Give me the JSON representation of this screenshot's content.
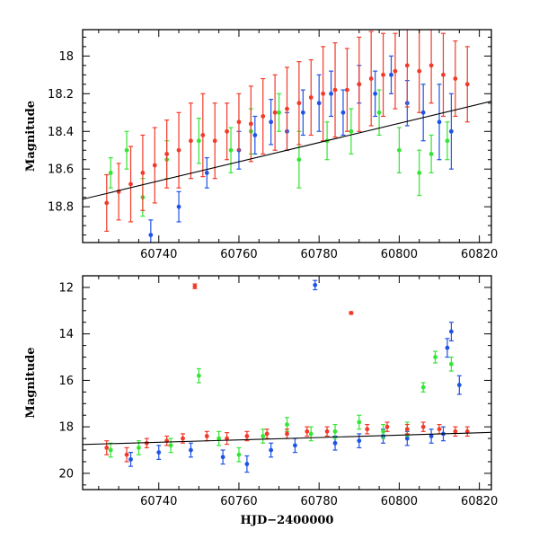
{
  "chart_data": [
    {
      "type": "scatter",
      "title": "",
      "xlabel": "",
      "ylabel": "Magnitude",
      "xlim": [
        60721,
        60823
      ],
      "ylim": [
        18.99,
        17.86
      ],
      "y_inverted": true,
      "xticks": [
        60740,
        60760,
        60780,
        60800,
        60820
      ],
      "xtick_labels": [
        "60740",
        "60760",
        "60780",
        "60800",
        "60820"
      ],
      "yticks": [
        18,
        18.2,
        18.4,
        18.6,
        18.8
      ],
      "ytick_labels": [
        "18",
        "18.2",
        "18.4",
        "18.6",
        "18.8"
      ],
      "colors": {
        "blue": "#1f53e6",
        "green": "#33e633",
        "red": "#f23a2a"
      },
      "series": [
        {
          "color_key": "blue",
          "x": [
            60738,
            60745,
            60752,
            60760,
            60764,
            60768,
            60772,
            60776,
            60780,
            60783,
            60786,
            60790,
            60794,
            60798,
            60802,
            60806,
            60810,
            60813
          ],
          "y": [
            18.95,
            18.8,
            18.62,
            18.5,
            18.42,
            18.35,
            18.4,
            18.3,
            18.25,
            18.2,
            18.3,
            18.15,
            18.2,
            18.1,
            18.25,
            18.3,
            18.35,
            18.4
          ],
          "yerr": [
            0.08,
            0.08,
            0.08,
            0.1,
            0.1,
            0.12,
            0.1,
            0.12,
            0.15,
            0.12,
            0.12,
            0.1,
            0.12,
            0.1,
            0.12,
            0.15,
            0.2,
            0.2
          ]
        },
        {
          "color_key": "green",
          "x": [
            60728,
            60732,
            60736,
            60742,
            60750,
            60758,
            60763,
            60770,
            60775,
            60782,
            60788,
            60795,
            60800,
            60805,
            60808,
            60812
          ],
          "y": [
            18.62,
            18.5,
            18.75,
            18.55,
            18.45,
            18.5,
            18.4,
            18.3,
            18.55,
            18.45,
            18.4,
            18.3,
            18.5,
            18.62,
            18.52,
            18.45
          ],
          "yerr": [
            0.08,
            0.1,
            0.1,
            0.1,
            0.12,
            0.12,
            0.12,
            0.1,
            0.15,
            0.1,
            0.12,
            0.12,
            0.12,
            0.12,
            0.1,
            0.1
          ]
        },
        {
          "color_key": "red",
          "x": [
            60727,
            60730,
            60733,
            60736,
            60739,
            60742,
            60745,
            60748,
            60751,
            60754,
            60757,
            60760,
            60763,
            60766,
            60769,
            60772,
            60775,
            60778,
            60781,
            60784,
            60787,
            60790,
            60793,
            60796,
            60799,
            60802,
            60805,
            60808,
            60811,
            60814,
            60817
          ],
          "y": [
            18.78,
            18.72,
            18.68,
            18.62,
            18.58,
            18.52,
            18.5,
            18.45,
            18.42,
            18.45,
            18.4,
            18.35,
            18.36,
            18.32,
            18.3,
            18.28,
            18.25,
            18.22,
            18.2,
            18.18,
            18.18,
            18.15,
            18.12,
            18.1,
            18.08,
            18.05,
            18.08,
            18.05,
            18.1,
            18.12,
            18.15
          ],
          "yerr": [
            0.15,
            0.15,
            0.2,
            0.2,
            0.2,
            0.18,
            0.2,
            0.2,
            0.22,
            0.2,
            0.15,
            0.15,
            0.2,
            0.2,
            0.2,
            0.22,
            0.22,
            0.2,
            0.25,
            0.25,
            0.22,
            0.25,
            0.25,
            0.22,
            0.2,
            0.22,
            0.22,
            0.2,
            0.22,
            0.2,
            0.2
          ]
        }
      ],
      "trend_line": {
        "x": [
          60721,
          60823
        ],
        "y": [
          18.76,
          18.24
        ]
      }
    },
    {
      "type": "scatter",
      "title": "",
      "xlabel": "HJD−2400000",
      "ylabel": "Magnitude",
      "xlim": [
        60721,
        60823
      ],
      "ylim": [
        20.7,
        11.5
      ],
      "y_inverted": true,
      "xticks": [
        60740,
        60760,
        60780,
        60800,
        60820
      ],
      "xtick_labels": [
        "60740",
        "60760",
        "60780",
        "60800",
        "60820"
      ],
      "yticks": [
        12,
        14,
        16,
        18,
        20
      ],
      "ytick_labels": [
        "12",
        "14",
        "16",
        "18",
        "20"
      ],
      "colors": {
        "blue": "#1f53e6",
        "green": "#33e633",
        "red": "#f23a2a"
      },
      "series": [
        {
          "color_key": "blue",
          "x": [
            60733,
            60740,
            60748,
            60756,
            60762,
            60768,
            60774,
            60779,
            60784,
            60790,
            60796,
            60802,
            60808,
            60811,
            60812,
            60813,
            60815
          ],
          "y": [
            19.4,
            19.1,
            19.0,
            19.3,
            19.6,
            19.0,
            18.8,
            11.9,
            18.7,
            18.6,
            18.4,
            18.5,
            18.4,
            18.3,
            14.6,
            13.9,
            16.2
          ],
          "yerr": [
            0.3,
            0.3,
            0.3,
            0.3,
            0.35,
            0.3,
            0.3,
            0.2,
            0.3,
            0.3,
            0.3,
            0.3,
            0.3,
            0.3,
            0.4,
            0.4,
            0.4
          ]
        },
        {
          "color_key": "green",
          "x": [
            60728,
            60735,
            60743,
            60750,
            60755,
            60760,
            60766,
            60772,
            60778,
            60784,
            60790,
            60796,
            60802,
            60806,
            60809,
            60813
          ],
          "y": [
            19.0,
            18.9,
            18.8,
            15.8,
            18.5,
            19.2,
            18.4,
            17.9,
            18.3,
            18.2,
            17.8,
            18.2,
            18.1,
            16.3,
            15.0,
            15.3
          ],
          "yerr": [
            0.3,
            0.3,
            0.3,
            0.3,
            0.3,
            0.3,
            0.3,
            0.3,
            0.3,
            0.3,
            0.3,
            0.3,
            0.3,
            0.2,
            0.25,
            0.3
          ]
        },
        {
          "color_key": "red",
          "x": [
            60727,
            60732,
            60737,
            60742,
            60746,
            60749,
            60752,
            60757,
            60762,
            60767,
            60772,
            60777,
            60782,
            60788,
            60792,
            60797,
            60802,
            60806,
            60810,
            60814,
            60817
          ],
          "y": [
            18.9,
            19.2,
            18.7,
            18.6,
            18.5,
            11.95,
            18.4,
            18.5,
            18.4,
            18.3,
            18.3,
            18.2,
            18.2,
            13.1,
            18.1,
            18.0,
            18.1,
            18.0,
            18.1,
            18.2,
            18.2
          ],
          "yerr": [
            0.3,
            0.3,
            0.2,
            0.2,
            0.2,
            0.1,
            0.2,
            0.25,
            0.2,
            0.2,
            0.2,
            0.2,
            0.2,
            0.05,
            0.2,
            0.2,
            0.2,
            0.2,
            0.2,
            0.2,
            0.2
          ]
        }
      ],
      "trend_line": {
        "x": [
          60721,
          60823
        ],
        "y": [
          18.76,
          18.24
        ]
      }
    }
  ]
}
